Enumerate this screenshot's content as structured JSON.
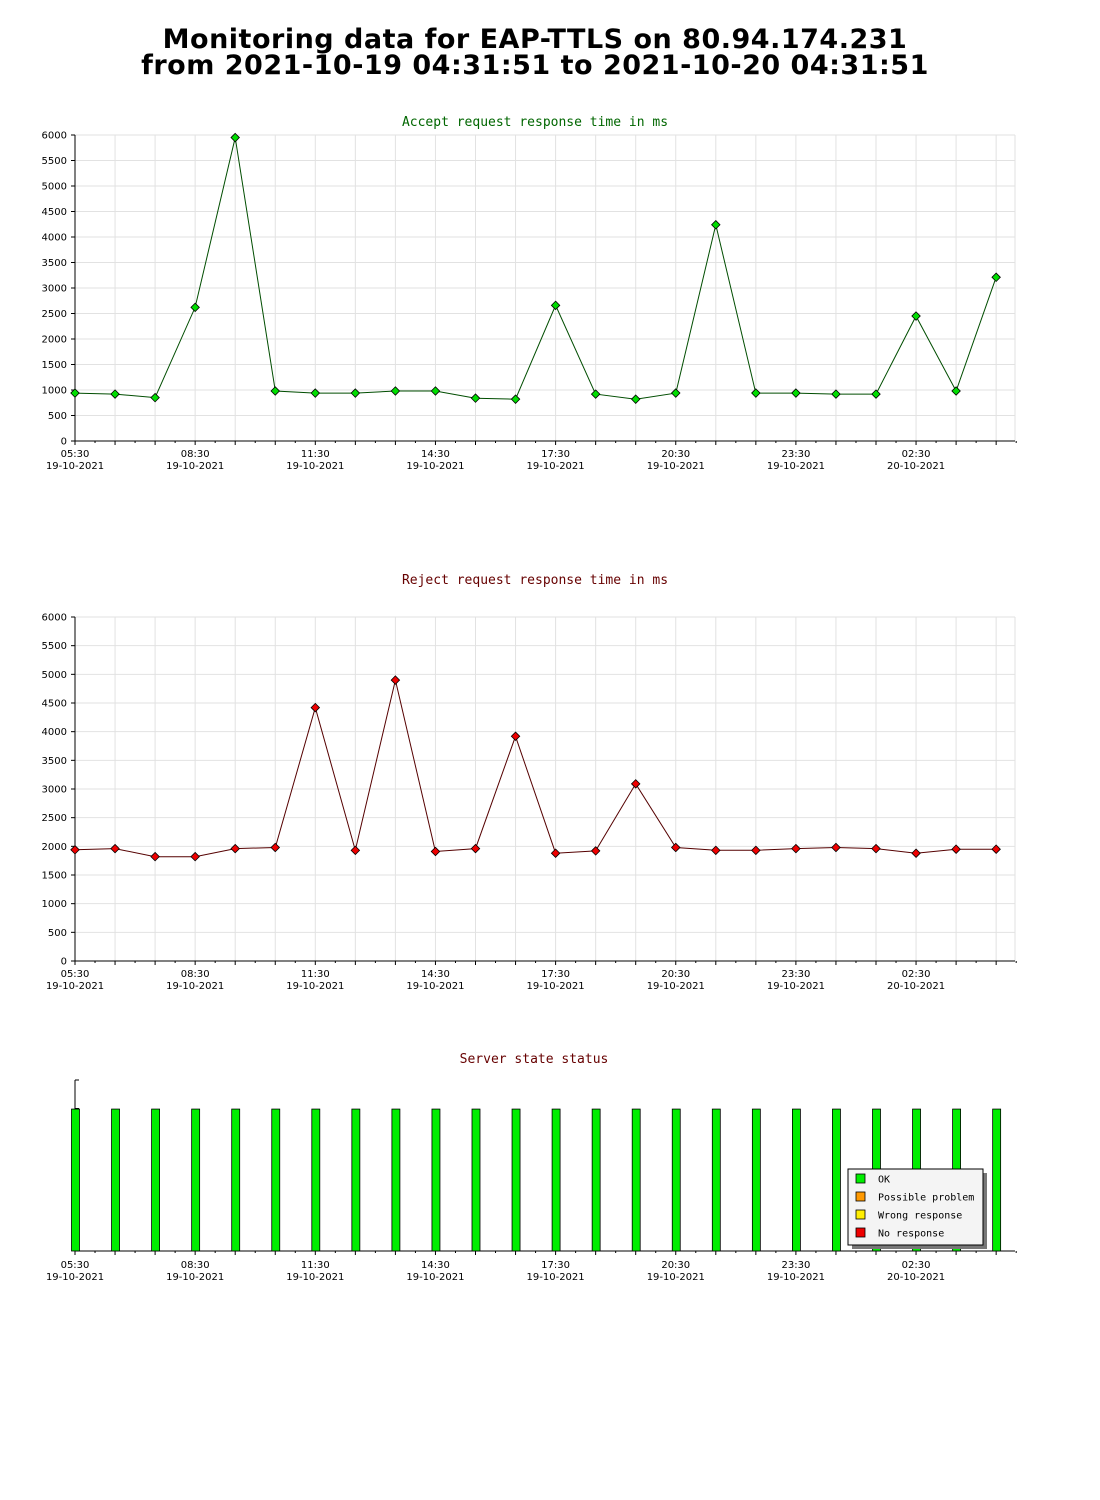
{
  "page": {
    "title_line1": "Monitoring data for EAP-TTLS on 80.94.174.231",
    "title_line2": "from 2021-10-19 04:31:51 to 2021-10-20 04:31:51"
  },
  "x_axis": {
    "ticks": [
      {
        "time": "05:30",
        "date": "19-10-2021"
      },
      {
        "time": "08:30",
        "date": "19-10-2021"
      },
      {
        "time": "11:30",
        "date": "19-10-2021"
      },
      {
        "time": "14:30",
        "date": "19-10-2021"
      },
      {
        "time": "17:30",
        "date": "19-10-2021"
      },
      {
        "time": "20:30",
        "date": "19-10-2021"
      },
      {
        "time": "23:30",
        "date": "19-10-2021"
      },
      {
        "time": "02:30",
        "date": "20-10-2021"
      }
    ]
  },
  "chart_data": [
    {
      "type": "line",
      "title": "Accept request response time in ms",
      "title_color": "#006600",
      "line_color": "#004d00",
      "marker_color": "#00dd00",
      "ylim": [
        0,
        6000
      ],
      "yticks": [
        0,
        500,
        1000,
        1500,
        2000,
        2500,
        3000,
        3500,
        4000,
        4500,
        5000,
        5500,
        6000
      ],
      "grid": true,
      "x": [
        "05:30",
        "06:30",
        "07:30",
        "08:30",
        "09:30",
        "10:30",
        "11:30",
        "12:30",
        "13:30",
        "14:30",
        "15:30",
        "16:30",
        "17:30",
        "18:30",
        "19:30",
        "20:30",
        "21:30",
        "22:30",
        "23:30",
        "00:30",
        "01:30",
        "02:30",
        "03:30",
        "04:30"
      ],
      "values": [
        940,
        920,
        850,
        2620,
        5950,
        980,
        940,
        940,
        980,
        980,
        840,
        820,
        2660,
        920,
        820,
        940,
        4240,
        940,
        940,
        920,
        920,
        2450,
        980,
        3210
      ]
    },
    {
      "type": "line",
      "title": "Reject request response time in ms",
      "title_color": "#660000",
      "line_color": "#550000",
      "marker_color": "#ee0000",
      "ylim": [
        0,
        6000
      ],
      "yticks": [
        0,
        500,
        1000,
        1500,
        2000,
        2500,
        3000,
        3500,
        4000,
        4500,
        5000,
        5500,
        6000
      ],
      "grid": true,
      "x": [
        "05:30",
        "06:30",
        "07:30",
        "08:30",
        "09:30",
        "10:30",
        "11:30",
        "12:30",
        "13:30",
        "14:30",
        "15:30",
        "16:30",
        "17:30",
        "18:30",
        "19:30",
        "20:30",
        "21:30",
        "22:30",
        "23:30",
        "00:30",
        "01:30",
        "02:30",
        "03:30",
        "04:30"
      ],
      "values": [
        1940,
        1960,
        1820,
        1820,
        1960,
        1980,
        4420,
        1930,
        4900,
        1910,
        1960,
        3920,
        1880,
        1920,
        3090,
        1980,
        1930,
        1930,
        1960,
        1980,
        1960,
        1880,
        1950,
        1950
      ]
    },
    {
      "type": "bar",
      "title": "Server state status",
      "title_color": "#660000",
      "x": [
        "05:30",
        "06:30",
        "07:30",
        "08:30",
        "09:30",
        "10:30",
        "11:30",
        "12:30",
        "13:30",
        "14:30",
        "15:30",
        "16:30",
        "17:30",
        "18:30",
        "19:30",
        "20:30",
        "21:30",
        "22:30",
        "23:30",
        "00:30",
        "01:30",
        "02:30",
        "03:30",
        "04:30"
      ],
      "states": [
        "OK",
        "OK",
        "OK",
        "OK",
        "OK",
        "OK",
        "OK",
        "OK",
        "OK",
        "OK",
        "OK",
        "OK",
        "OK",
        "OK",
        "OK",
        "OK",
        "OK",
        "OK",
        "OK",
        "OK",
        "OK",
        "OK",
        "OK",
        "OK"
      ],
      "level": 0.83,
      "legend_position": "bottom-right",
      "legend": [
        {
          "label": "OK",
          "color": "#00ee00"
        },
        {
          "label": "Possible problem",
          "color": "#ff9900"
        },
        {
          "label": "Wrong response",
          "color": "#ffee00"
        },
        {
          "label": "No response",
          "color": "#ee0000"
        }
      ]
    }
  ]
}
